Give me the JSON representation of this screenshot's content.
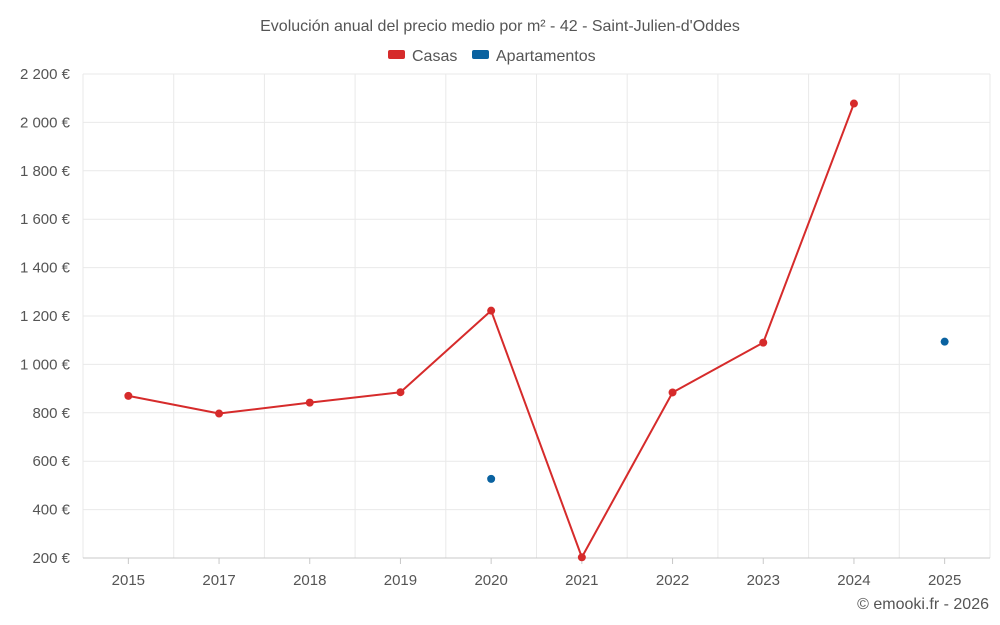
{
  "colors": {
    "casas": "#d62b2b",
    "apartamentos": "#0a62a0",
    "grid": "#e9e9e9",
    "text": "#555555"
  },
  "credit": "© emooki.fr - 2026",
  "chart_data": {
    "type": "line",
    "title": "Evolución anual del precio medio por m² - 42 - Saint-Julien-d'Oddes",
    "categories": [
      "2015",
      "2017",
      "2018",
      "2019",
      "2020",
      "2021",
      "2022",
      "2023",
      "2024",
      "2025"
    ],
    "ylim": [
      200,
      2200
    ],
    "yticks": [
      200,
      400,
      600,
      800,
      1000,
      1200,
      1400,
      1600,
      1800,
      2000,
      2200
    ],
    "ytick_labels": [
      "200 €",
      "400 €",
      "600 €",
      "800 €",
      "1 000 €",
      "1 200 €",
      "1 400 €",
      "1 600 €",
      "1 800 €",
      "2 000 €",
      "2 200 €"
    ],
    "legend_position": "top-center",
    "grid": true,
    "series": [
      {
        "name": "Casas",
        "color": "#d62b2b",
        "line": true,
        "values": [
          870,
          797,
          842,
          885,
          1222,
          203,
          884,
          1090,
          2078,
          null
        ]
      },
      {
        "name": "Apartamentos",
        "color": "#0a62a0",
        "line": false,
        "values": [
          null,
          null,
          null,
          null,
          527,
          null,
          null,
          null,
          null,
          1094
        ]
      }
    ]
  }
}
